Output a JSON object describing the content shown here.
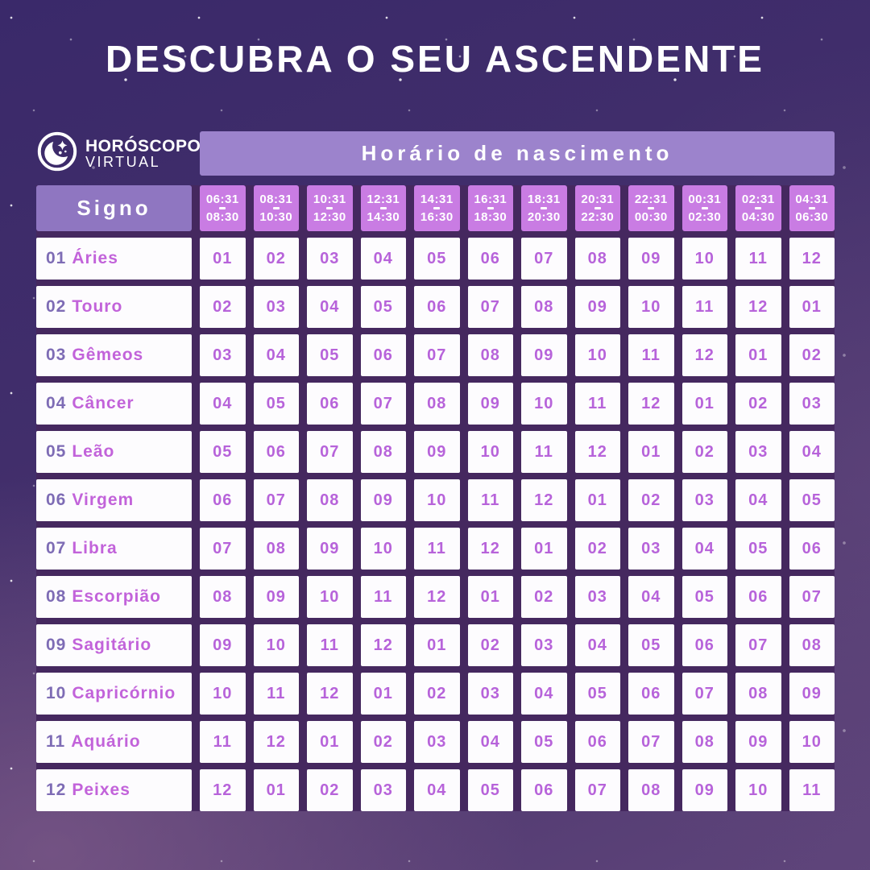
{
  "brand": {
    "icon": "moon-stars-icon",
    "name_line1": "HORÓSCOPO",
    "name_line2": "VIRTUAL"
  },
  "chart_data": {
    "type": "table",
    "title": "DESCUBRA O SEU ASCENDENTE",
    "column_group_label": "Horário de nascimento",
    "row_group_label": "Signo",
    "columns": [
      {
        "from": "06:31",
        "to": "08:30"
      },
      {
        "from": "08:31",
        "to": "10:30"
      },
      {
        "from": "10:31",
        "to": "12:30"
      },
      {
        "from": "12:31",
        "to": "14:30"
      },
      {
        "from": "14:31",
        "to": "16:30"
      },
      {
        "from": "16:31",
        "to": "18:30"
      },
      {
        "from": "18:31",
        "to": "20:30"
      },
      {
        "from": "20:31",
        "to": "22:30"
      },
      {
        "from": "22:31",
        "to": "00:30"
      },
      {
        "from": "00:31",
        "to": "02:30"
      },
      {
        "from": "02:31",
        "to": "04:30"
      },
      {
        "from": "04:31",
        "to": "06:30"
      }
    ],
    "rows": [
      {
        "num": "01",
        "name": "Áries",
        "cells": [
          "01",
          "02",
          "03",
          "04",
          "05",
          "06",
          "07",
          "08",
          "09",
          "10",
          "11",
          "12"
        ]
      },
      {
        "num": "02",
        "name": "Touro",
        "cells": [
          "02",
          "03",
          "04",
          "05",
          "06",
          "07",
          "08",
          "09",
          "10",
          "11",
          "12",
          "01"
        ]
      },
      {
        "num": "03",
        "name": "Gêmeos",
        "cells": [
          "03",
          "04",
          "05",
          "06",
          "07",
          "08",
          "09",
          "10",
          "11",
          "12",
          "01",
          "02"
        ]
      },
      {
        "num": "04",
        "name": "Câncer",
        "cells": [
          "04",
          "05",
          "06",
          "07",
          "08",
          "09",
          "10",
          "11",
          "12",
          "01",
          "02",
          "03"
        ]
      },
      {
        "num": "05",
        "name": "Leão",
        "cells": [
          "05",
          "06",
          "07",
          "08",
          "09",
          "10",
          "11",
          "12",
          "01",
          "02",
          "03",
          "04"
        ]
      },
      {
        "num": "06",
        "name": "Virgem",
        "cells": [
          "06",
          "07",
          "08",
          "09",
          "10",
          "11",
          "12",
          "01",
          "02",
          "03",
          "04",
          "05"
        ]
      },
      {
        "num": "07",
        "name": "Libra",
        "cells": [
          "07",
          "08",
          "09",
          "10",
          "11",
          "12",
          "01",
          "02",
          "03",
          "04",
          "05",
          "06"
        ]
      },
      {
        "num": "08",
        "name": "Escorpião",
        "cells": [
          "08",
          "09",
          "10",
          "11",
          "12",
          "01",
          "02",
          "03",
          "04",
          "05",
          "06",
          "07"
        ]
      },
      {
        "num": "09",
        "name": "Sagitário",
        "cells": [
          "09",
          "10",
          "11",
          "12",
          "01",
          "02",
          "03",
          "04",
          "05",
          "06",
          "07",
          "08"
        ]
      },
      {
        "num": "10",
        "name": "Capricórnio",
        "cells": [
          "10",
          "11",
          "12",
          "01",
          "02",
          "03",
          "04",
          "05",
          "06",
          "07",
          "08",
          "09"
        ]
      },
      {
        "num": "11",
        "name": "Aquário",
        "cells": [
          "11",
          "12",
          "01",
          "02",
          "03",
          "04",
          "05",
          "06",
          "07",
          "08",
          "09",
          "10"
        ]
      },
      {
        "num": "12",
        "name": "Peixes",
        "cells": [
          "12",
          "01",
          "02",
          "03",
          "04",
          "05",
          "06",
          "07",
          "08",
          "09",
          "10",
          "11"
        ]
      }
    ]
  },
  "colors": {
    "title_text": "#ffffff",
    "bar": "#9c83cc",
    "signo": "#8f76c1",
    "slot": "#c97ce3",
    "gap": "#45285f",
    "cell_text": "#b763da",
    "label_num": "#7e6cb5",
    "label_name": "#c263da"
  }
}
